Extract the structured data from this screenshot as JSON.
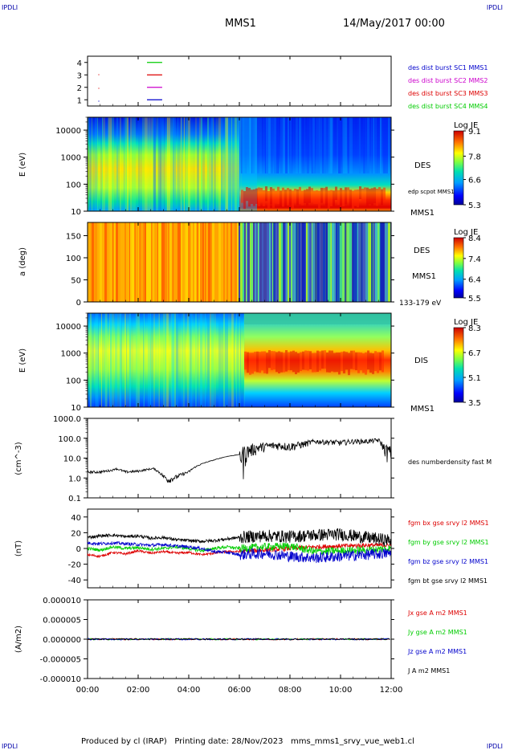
{
  "header": {
    "corner_tl": "IPDLI",
    "corner_tr": "IPDLI",
    "corner_bl": "IPDLI",
    "corner_br": "IPDLI",
    "spacecraft": "MMS1",
    "date": "14/May/2017 00:00"
  },
  "footer": {
    "text": "Produced by cl (IRAP)   Printing date: 28/Nov/2023   mms_mms1_srvy_vue_web1.cl"
  },
  "colors": {
    "red": "#dd0000",
    "green": "#00cc00",
    "blue": "#0000cc",
    "magenta": "#cc00cc",
    "black": "#000000"
  },
  "chart_data": [
    {
      "type": "line",
      "panel": "burst-availability",
      "yticks": [
        "1",
        "2",
        "3",
        "4"
      ],
      "ylim": [
        0.5,
        4.5
      ],
      "legend": [
        {
          "name": "des dist burst SC1 MMS1",
          "color": "#0000cc"
        },
        {
          "name": "des dist burst SC2 MMS2",
          "color": "#cc00cc"
        },
        {
          "name": "des dist burst SC3 MMS3",
          "color": "#dd0000"
        },
        {
          "name": "des dist burst SC4 MMS4",
          "color": "#00cc00"
        }
      ],
      "segments": [
        {
          "level": 4,
          "x_start": 2.35,
          "x_end": 2.95,
          "color": "#00cc00"
        },
        {
          "level": 3,
          "x_start": 2.35,
          "x_end": 2.95,
          "color": "#dd0000"
        },
        {
          "level": 2,
          "x_start": 2.35,
          "x_end": 2.95,
          "color": "#cc00cc"
        },
        {
          "level": 1,
          "x_start": 2.35,
          "x_end": 2.95,
          "color": "#0000cc"
        }
      ]
    },
    {
      "type": "heatmap",
      "panel": "des-energy-spectrogram",
      "ylabel": "E (eV)",
      "yticks": [
        "10",
        "100",
        "1000",
        "10000"
      ],
      "ylog": true,
      "ylim": [
        10,
        30000
      ],
      "label": "DES",
      "overlay_label": "edp scpot MMS1",
      "footer_label": "MMS1",
      "colorbar": {
        "title": "Log JE",
        "ticks": [
          "9.1",
          "7.8",
          "6.6",
          "5.3"
        ],
        "range": [
          5.3,
          9.1
        ]
      }
    },
    {
      "type": "heatmap",
      "panel": "des-pitch-angle",
      "ylabel": "a (deg)",
      "yticks": [
        "0",
        "50",
        "100",
        "150"
      ],
      "ylim": [
        0,
        180
      ],
      "label": "DES",
      "label2": "MMS1",
      "energy_range": "133-179 eV",
      "colorbar": {
        "title": "Log JE",
        "ticks": [
          "8.4",
          "7.4",
          "6.4",
          "5.5"
        ],
        "range": [
          5.5,
          8.4
        ]
      }
    },
    {
      "type": "heatmap",
      "panel": "dis-energy-spectrogram",
      "ylabel": "E (eV)",
      "yticks": [
        "10",
        "100",
        "1000",
        "10000"
      ],
      "ylog": true,
      "ylim": [
        10,
        30000
      ],
      "label": "DIS",
      "footer_label": "MMS1",
      "colorbar": {
        "title": "Log JE",
        "ticks": [
          "8.3",
          "6.7",
          "5.1",
          "3.5"
        ],
        "range": [
          3.5,
          8.3
        ]
      }
    },
    {
      "type": "line",
      "panel": "density",
      "ylabel": "(cm^-3)",
      "yticks": [
        "0.1",
        "1.0",
        "10.0",
        "100.0",
        "1000.0"
      ],
      "ylog": true,
      "ylim": [
        0.1,
        1000
      ],
      "series": [
        {
          "name": "des numberdensity fast M",
          "color": "#000000",
          "x": [
            0,
            0.5,
            1.0,
            1.1,
            1.5,
            2.0,
            2.6,
            3.0,
            3.2,
            3.5,
            4.0,
            4.5,
            5.0,
            5.5,
            6.0,
            6.5,
            7.0,
            7.5,
            8.0,
            8.5,
            9.0,
            9.5,
            10.0,
            10.5,
            11.0,
            11.5,
            11.7,
            11.85,
            12.0
          ],
          "y": [
            2.0,
            2.0,
            2.5,
            3.0,
            2.0,
            2.2,
            3.0,
            1.2,
            0.8,
            1.1,
            2.0,
            5.0,
            8.0,
            12.0,
            15.0,
            30.0,
            40.0,
            45.0,
            40.0,
            50.0,
            70.0,
            65.0,
            60.0,
            70.0,
            70.0,
            80.0,
            35.0,
            25.0,
            20.0
          ]
        }
      ]
    },
    {
      "type": "line",
      "panel": "magnetic-field",
      "ylabel": "(nT)",
      "yticks": [
        "-40",
        "-20",
        "0",
        "20",
        "40"
      ],
      "ylim": [
        -50,
        50
      ],
      "series": [
        {
          "name": "fgm bx gse srvy l2 MMS1",
          "color": "#dd0000",
          "x": [
            0,
            0.5,
            1.0,
            1.5,
            2.0,
            2.5,
            3.0,
            3.5,
            4.0,
            4.5,
            5.0,
            5.5,
            6.0,
            7.0,
            8.0,
            9.0,
            10.0,
            11.0,
            12.0
          ],
          "y": [
            -8,
            -10,
            -5,
            -7,
            -3,
            -6,
            -4,
            -6,
            -5,
            -8,
            -6,
            -4,
            -4,
            -2,
            0,
            2,
            3,
            4,
            4
          ]
        },
        {
          "name": "fgm by gse srvy l2 MMS1",
          "color": "#00cc00",
          "x": [
            0,
            0.5,
            1.0,
            1.5,
            2.0,
            2.5,
            3.0,
            3.5,
            4.0,
            4.5,
            5.0,
            5.5,
            6.0,
            7.0,
            8.0,
            9.0,
            10.0,
            11.0,
            12.0
          ],
          "y": [
            0,
            -2,
            2,
            0,
            1,
            -1,
            0,
            2,
            0,
            -3,
            0,
            2,
            0,
            2,
            3,
            -4,
            -3,
            -2,
            0
          ]
        },
        {
          "name": "fgm bz gse srvy l2 MMS1",
          "color": "#0000cc",
          "x": [
            0,
            0.5,
            1.0,
            1.5,
            2.0,
            2.5,
            3.0,
            3.5,
            4.0,
            4.5,
            5.0,
            5.5,
            6.0,
            7.0,
            8.0,
            9.0,
            10.0,
            11.0,
            12.0
          ],
          "y": [
            7,
            6,
            7,
            6,
            5,
            4,
            5,
            3,
            2,
            0,
            -4,
            -5,
            -8,
            -6,
            -10,
            -12,
            -10,
            -8,
            -6
          ]
        },
        {
          "name": "fgm bt gse srvy l2 MMS1",
          "color": "#000000",
          "x": [
            0,
            0.5,
            1.0,
            1.5,
            2.0,
            2.5,
            3.0,
            3.5,
            4.0,
            4.5,
            5.0,
            5.5,
            6.0,
            7.0,
            8.0,
            9.0,
            10.0,
            11.0,
            12.0
          ],
          "y": [
            14,
            16,
            17,
            15,
            16,
            13,
            14,
            11,
            10,
            9,
            10,
            12,
            14,
            16,
            15,
            17,
            18,
            14,
            10
          ]
        }
      ]
    },
    {
      "type": "line",
      "panel": "current-density",
      "ylabel": "(A/m2)",
      "yticks": [
        "-0.000010",
        "-0.000005",
        "0.000000",
        "0.000005",
        "0.000010"
      ],
      "ylim": [
        -1e-05,
        1e-05
      ],
      "series": [
        {
          "name": "Jx gse A m2 MMS1",
          "color": "#dd0000",
          "x": [
            0,
            12
          ],
          "y": [
            0,
            0
          ]
        },
        {
          "name": "Jy gse A m2 MMS1",
          "color": "#00cc00",
          "x": [
            0,
            12
          ],
          "y": [
            0,
            0
          ]
        },
        {
          "name": "Jz gse A m2 MMS1",
          "color": "#0000cc",
          "x": [
            0,
            12
          ],
          "y": [
            0,
            0
          ]
        },
        {
          "name": "J A m2 MMS1",
          "color": "#000000",
          "x": [
            0,
            12
          ],
          "y": [
            0,
            0
          ]
        }
      ]
    }
  ],
  "time_axis": {
    "labels": [
      "00:00",
      "02:00",
      "04:00",
      "06:00",
      "08:00",
      "10:00",
      "12:00"
    ]
  }
}
